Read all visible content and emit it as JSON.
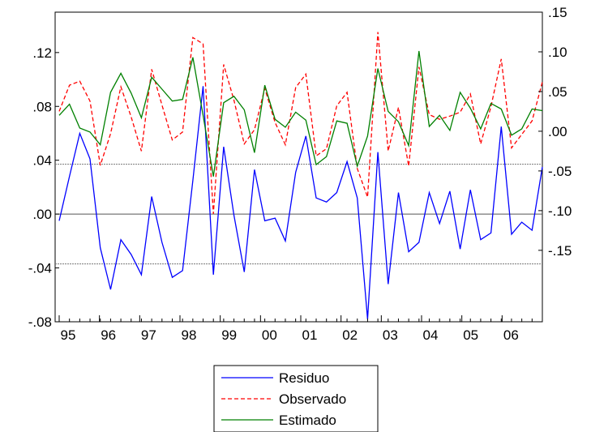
{
  "chart_data": {
    "type": "line",
    "title": "",
    "xlabel": "",
    "x_tick_labels": [
      "95",
      "96",
      "97",
      "98",
      "99",
      "00",
      "01",
      "02",
      "03",
      "04",
      "05",
      "06"
    ],
    "periods_per_year": 4,
    "left_axis": {
      "ylim": [
        -0.08,
        0.15
      ],
      "ticks": [
        ".12",
        ".08",
        ".04",
        ".00",
        "-.04",
        "-.08"
      ],
      "tick_values": [
        0.12,
        0.08,
        0.04,
        0.0,
        -0.04,
        -0.08
      ],
      "reference_lines": [
        0.037,
        -0.037
      ]
    },
    "right_axis": {
      "ylim": [
        -0.24,
        0.15
      ],
      "ticks": [
        ".15",
        ".10",
        ".05",
        ".00",
        "-.05",
        "-.10",
        "-.15"
      ],
      "tick_values": [
        0.15,
        0.1,
        0.05,
        0.0,
        -0.05,
        -0.1,
        -0.15
      ]
    },
    "series": [
      {
        "name": "Residuo",
        "axis": "left",
        "color": "#0000ff",
        "style": "solid",
        "values": [
          -0.005,
          0.028,
          0.06,
          0.041,
          -0.025,
          -0.056,
          -0.019,
          -0.03,
          -0.045,
          0.013,
          -0.021,
          -0.047,
          -0.042,
          0.025,
          0.095,
          -0.045,
          0.05,
          -0.001,
          -0.043,
          0.033,
          -0.005,
          -0.003,
          -0.02,
          0.031,
          0.058,
          0.012,
          0.009,
          0.016,
          0.039,
          0.012,
          -0.078,
          0.046,
          -0.052,
          0.016,
          -0.028,
          -0.021,
          0.016,
          -0.007,
          0.017,
          -0.026,
          0.018,
          -0.019,
          -0.014,
          0.065,
          -0.015,
          -0.006,
          -0.012,
          0.035
        ]
      },
      {
        "name": "Observado",
        "axis": "right",
        "color": "#ff0000",
        "style": "dashed",
        "values": [
          0.025,
          0.058,
          0.063,
          0.038,
          -0.043,
          -0.003,
          0.056,
          0.018,
          -0.025,
          0.078,
          0.033,
          -0.011,
          -0.001,
          0.118,
          0.11,
          -0.104,
          0.084,
          0.039,
          -0.016,
          0.002,
          0.054,
          0.011,
          -0.017,
          0.055,
          0.072,
          -0.031,
          -0.022,
          0.032,
          0.049,
          -0.047,
          -0.083,
          0.125,
          -0.025,
          0.03,
          -0.044,
          0.081,
          0.021,
          0.015,
          0.019,
          0.024,
          0.047,
          -0.016,
          0.031,
          0.091,
          -0.021,
          -0.004,
          0.013,
          0.062
        ]
      },
      {
        "name": "Estimado",
        "axis": "right",
        "color": "#008000",
        "style": "solid",
        "values": [
          0.02,
          0.034,
          0.004,
          -0.001,
          -0.017,
          0.049,
          0.073,
          0.048,
          0.017,
          0.068,
          0.053,
          0.038,
          0.04,
          0.093,
          0.02,
          -0.057,
          0.036,
          0.044,
          0.027,
          -0.027,
          0.058,
          0.015,
          0.005,
          0.024,
          0.014,
          -0.042,
          -0.032,
          0.013,
          0.01,
          -0.044,
          -0.006,
          0.079,
          0.025,
          0.012,
          -0.018,
          0.101,
          0.006,
          0.02,
          0.001,
          0.049,
          0.029,
          0.003,
          0.035,
          0.028,
          -0.005,
          0.003,
          0.028,
          0.026
        ]
      }
    ],
    "grid": false,
    "legend_position": "bottom-center"
  }
}
